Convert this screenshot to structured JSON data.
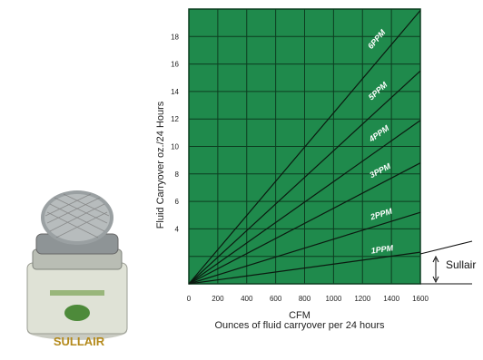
{
  "chart_data": {
    "type": "line",
    "xlabel": "CFM",
    "caption": "Ounces of fluid carryover per 24 hours",
    "ylabel": "Fluid Carryover oz./24 Hours",
    "x_ticks": [
      "0",
      "200",
      "400",
      "600",
      "800",
      "1000",
      "1200",
      "1400",
      "1600"
    ],
    "y_ticks": [
      "4",
      "6",
      "8",
      "10",
      "12",
      "14",
      "16",
      "18"
    ],
    "xlim": [
      0,
      1600
    ],
    "ylim": [
      0,
      20
    ],
    "grid": true,
    "plot_background": "#1f8a4c",
    "series": [
      {
        "name": "1PPM",
        "x": [
          0,
          1600
        ],
        "y": [
          0,
          2.3
        ]
      },
      {
        "name": "2PPM",
        "x": [
          0,
          1600
        ],
        "y": [
          0,
          5.2
        ]
      },
      {
        "name": "3PPM",
        "x": [
          0,
          1600
        ],
        "y": [
          0,
          8.8
        ]
      },
      {
        "name": "4PPM",
        "x": [
          0,
          1600
        ],
        "y": [
          0,
          11.9
        ]
      },
      {
        "name": "5PPM",
        "x": [
          0,
          1600
        ],
        "y": [
          0,
          15.5
        ]
      },
      {
        "name": "6PPM",
        "x": [
          0,
          1600
        ],
        "y": [
          0,
          19.9
        ]
      }
    ],
    "callout_label": "Sullair"
  },
  "product_image": {
    "label_text": "SULLAIR",
    "body_color": "#d9dccf",
    "mesh_color": "#9aa0a2"
  }
}
